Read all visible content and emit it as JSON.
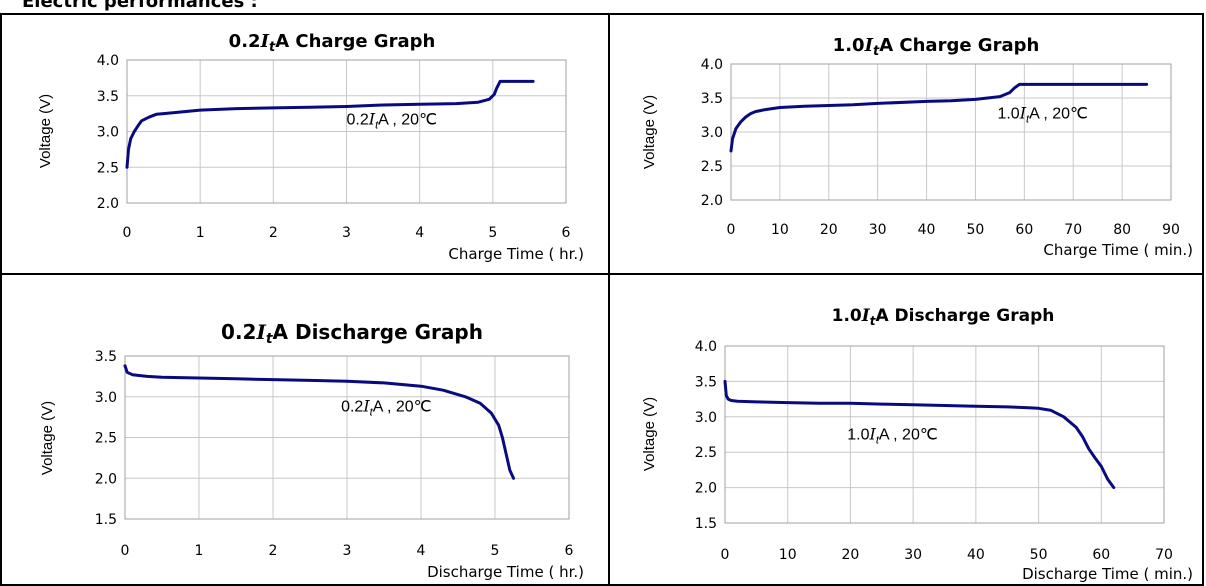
{
  "heading": "Electric performances :",
  "colors": {
    "curve": "#0a0a80",
    "grid": "#c8c8c8"
  },
  "chart_data": [
    {
      "type": "line",
      "title_pre": "0.2",
      "title_it": "I",
      "title_sub": "t",
      "title_post": "A Charge Graph",
      "xlabel": "Charge Time ( hr.)",
      "ylabel": "Voltage (V)",
      "xticks": [
        "0",
        "1",
        "2",
        "3",
        "4",
        "5",
        "6"
      ],
      "yticks": [
        "2.0",
        "2.5",
        "3.0",
        "3.5",
        "4.0"
      ],
      "xlim": [
        0,
        6
      ],
      "ylim": [
        2.0,
        4.0
      ],
      "grid": true,
      "annotation": {
        "pre": "0.2",
        "it": "I",
        "sub": "t",
        "post": "A , 20℃",
        "x": 3.0,
        "y": 3.1
      },
      "series": [
        {
          "x": [
            0,
            0.02,
            0.05,
            0.1,
            0.15,
            0.2,
            0.3,
            0.4,
            0.5,
            0.7,
            1,
            1.5,
            2,
            2.5,
            3,
            3.5,
            4,
            4.5,
            4.8,
            4.95,
            5.02,
            5.05,
            5.1,
            5.2,
            5.3,
            5.4,
            5.55
          ],
          "y": [
            2.5,
            2.75,
            2.9,
            3.0,
            3.08,
            3.15,
            3.2,
            3.24,
            3.25,
            3.27,
            3.3,
            3.32,
            3.33,
            3.34,
            3.35,
            3.37,
            3.38,
            3.39,
            3.41,
            3.45,
            3.52,
            3.6,
            3.7,
            3.7,
            3.7,
            3.7,
            3.7
          ]
        }
      ]
    },
    {
      "type": "line",
      "title_pre": "1.0",
      "title_it": "I",
      "title_sub": "t",
      "title_post": "A Charge Graph",
      "xlabel": "Charge Time ( min.)",
      "ylabel": "Voltage (V)",
      "xticks": [
        "0",
        "10",
        "20",
        "30",
        "40",
        "50",
        "60",
        "70",
        "80",
        "90"
      ],
      "yticks": [
        "2.0",
        "2.5",
        "3.0",
        "3.5",
        "4.0"
      ],
      "xlim": [
        0,
        90
      ],
      "ylim": [
        2.0,
        4.0
      ],
      "grid": true,
      "annotation": {
        "pre": "1.0",
        "it": "I",
        "sub": "t",
        "post": "A , 20℃",
        "x": 54.5,
        "y": 3.2
      },
      "series": [
        {
          "x": [
            0,
            0.3,
            1,
            2,
            3,
            4,
            5,
            7,
            10,
            15,
            20,
            25,
            30,
            40,
            45,
            50,
            55,
            57,
            58,
            59,
            60,
            65,
            70,
            75,
            80,
            85
          ],
          "y": [
            2.72,
            2.9,
            3.05,
            3.15,
            3.22,
            3.27,
            3.3,
            3.33,
            3.36,
            3.38,
            3.39,
            3.4,
            3.42,
            3.45,
            3.46,
            3.48,
            3.52,
            3.58,
            3.65,
            3.7,
            3.7,
            3.7,
            3.7,
            3.7,
            3.7,
            3.7
          ]
        }
      ]
    },
    {
      "type": "line",
      "title_pre": "0.2",
      "title_it": "I",
      "title_sub": "t",
      "title_post": "A Discharge Graph",
      "xlabel": "Discharge Time ( hr.)",
      "ylabel": "Voltage (V)",
      "xticks": [
        "0",
        "1",
        "2",
        "3",
        "4",
        "5",
        "6"
      ],
      "yticks": [
        "1.5",
        "2.0",
        "2.5",
        "3.0",
        "3.5"
      ],
      "xlim": [
        0,
        6
      ],
      "ylim": [
        1.5,
        3.5
      ],
      "grid": true,
      "annotation": {
        "pre": "0.2",
        "it": "I",
        "sub": "t",
        "post": "A , 20℃",
        "x": 2.92,
        "y": 2.82
      },
      "series": [
        {
          "x": [
            0,
            0.03,
            0.1,
            0.3,
            0.5,
            1,
            1.5,
            2,
            2.5,
            3,
            3.5,
            4,
            4.3,
            4.6,
            4.8,
            4.95,
            5.05,
            5.1,
            5.15,
            5.2,
            5.25
          ],
          "y": [
            3.38,
            3.3,
            3.27,
            3.25,
            3.24,
            3.23,
            3.22,
            3.21,
            3.2,
            3.19,
            3.17,
            3.13,
            3.08,
            3.0,
            2.92,
            2.8,
            2.65,
            2.5,
            2.3,
            2.1,
            2.0
          ]
        }
      ]
    },
    {
      "type": "line",
      "title_pre": "1.0",
      "title_it": "I",
      "title_sub": "t",
      "title_post": "A  Discharge Graph",
      "xlabel": "Discharge Time ( min.)",
      "ylabel": "Voltage (V)",
      "xticks": [
        "0",
        "10",
        "20",
        "30",
        "40",
        "50",
        "60",
        "70"
      ],
      "yticks": [
        "1.5",
        "2.0",
        "2.5",
        "3.0",
        "3.5",
        "4.0"
      ],
      "xlim": [
        0,
        70
      ],
      "ylim": [
        1.5,
        4.0
      ],
      "grid": true,
      "annotation": {
        "pre": "1.0",
        "it": "I",
        "sub": "t",
        "post": "A , 20℃",
        "x": 19.5,
        "y": 2.68
      },
      "series": [
        {
          "x": [
            0,
            0.2,
            0.5,
            1,
            2,
            5,
            10,
            15,
            20,
            25,
            30,
            35,
            40,
            45,
            48,
            50,
            52,
            54,
            56,
            57,
            58,
            59,
            60,
            61,
            62
          ],
          "y": [
            3.5,
            3.3,
            3.25,
            3.23,
            3.22,
            3.21,
            3.2,
            3.19,
            3.19,
            3.18,
            3.17,
            3.16,
            3.15,
            3.14,
            3.13,
            3.12,
            3.09,
            3.0,
            2.85,
            2.72,
            2.55,
            2.42,
            2.3,
            2.12,
            2.0
          ]
        }
      ]
    }
  ]
}
